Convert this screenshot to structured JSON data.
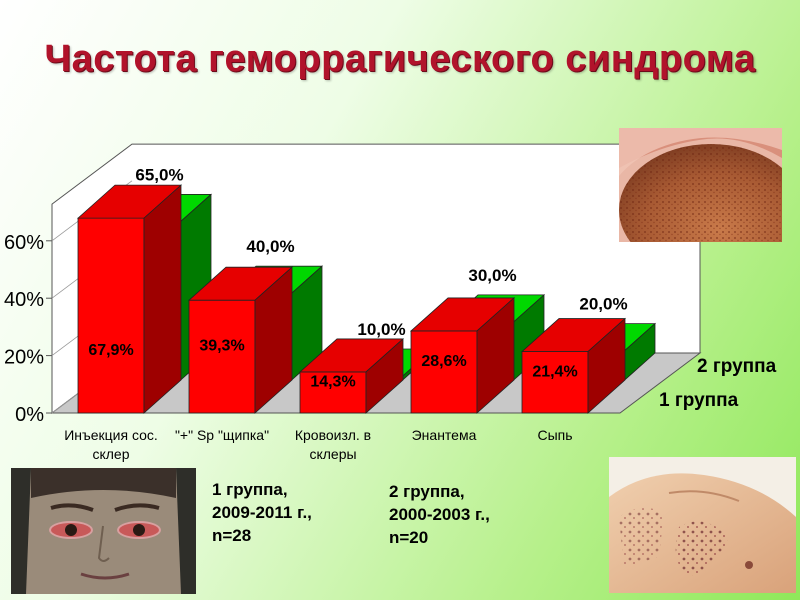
{
  "slide": {
    "title": "Частота геморрагического синдрома"
  },
  "chart_data": {
    "type": "bar",
    "style": "3d-clustered-depth",
    "categories": [
      [
        "Инъекция сос.",
        "склер"
      ],
      [
        "\"+\" Sp \"щипка\""
      ],
      [
        "Кровоизл. в",
        "склеры"
      ],
      [
        "Энантема"
      ],
      [
        "Сыпь"
      ]
    ],
    "series": [
      {
        "name": "1 группа",
        "values": [
          67.9,
          39.3,
          14.3,
          28.6,
          21.4
        ],
        "labels": [
          "67,9%",
          "39,3%",
          "14,3%",
          "28,6%",
          "21,4%"
        ],
        "color": "#ff0000"
      },
      {
        "name": "2 группа",
        "values": [
          65.0,
          40.0,
          10.0,
          30.0,
          20.0
        ],
        "labels": [
          "65,0%",
          "40,0%",
          "10,0%",
          "30,0%",
          "20,0%"
        ],
        "color": "#00bb00"
      }
    ],
    "ylim": [
      0,
      70
    ],
    "yticks": [
      "0%",
      "20%",
      "40%",
      "60%"
    ],
    "ytick_values": [
      0,
      20,
      40,
      60
    ],
    "legend_placement": "series labels on depth axis (right)",
    "grid": false
  },
  "notes": {
    "group1": [
      "1 группа,",
      "2009-2011 г.,",
      "n=28"
    ],
    "group2": [
      "2 группа,",
      "2000-2003 г.,",
      "n=20"
    ]
  },
  "icons": {
    "photo_tongue": "tongue-petechiae-photo",
    "photo_eyes": "scleral-hemorrhage-photo",
    "photo_skin": "skin-rash-photo"
  }
}
